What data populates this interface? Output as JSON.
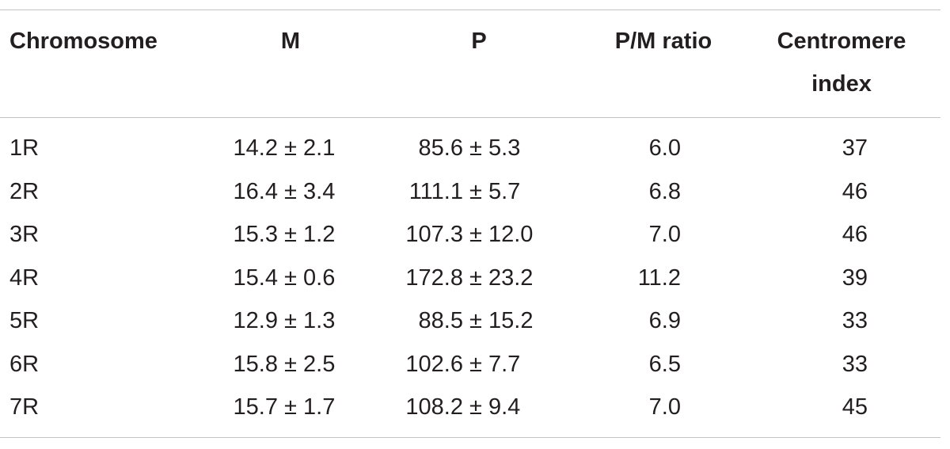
{
  "table": {
    "headers": [
      "Chromosome",
      "M",
      "P",
      "P/M ratio",
      "Centromere index"
    ],
    "rows": [
      [
        "1R",
        "14.2 ± 2.1",
        "85.6 ± 5.3",
        "6.0",
        "37"
      ],
      [
        "2R",
        "16.4 ± 3.4",
        "111.1 ± 5.7",
        "6.8",
        "46"
      ],
      [
        "3R",
        "15.3 ± 1.2",
        "107.3 ± 12.0",
        "7.0",
        "46"
      ],
      [
        "4R",
        "15.4 ± 0.6",
        "172.8 ± 23.2",
        "11.2",
        "39"
      ],
      [
        "5R",
        "12.9 ± 1.3",
        "88.5 ± 15.2",
        "6.9",
        "33"
      ],
      [
        "6R",
        "15.8 ± 2.5",
        "102.6 ± 7.7",
        "6.5",
        "33"
      ],
      [
        "7R",
        "15.7 ± 1.7",
        "108.2 ± 9.4",
        "7.0",
        "45"
      ]
    ]
  }
}
